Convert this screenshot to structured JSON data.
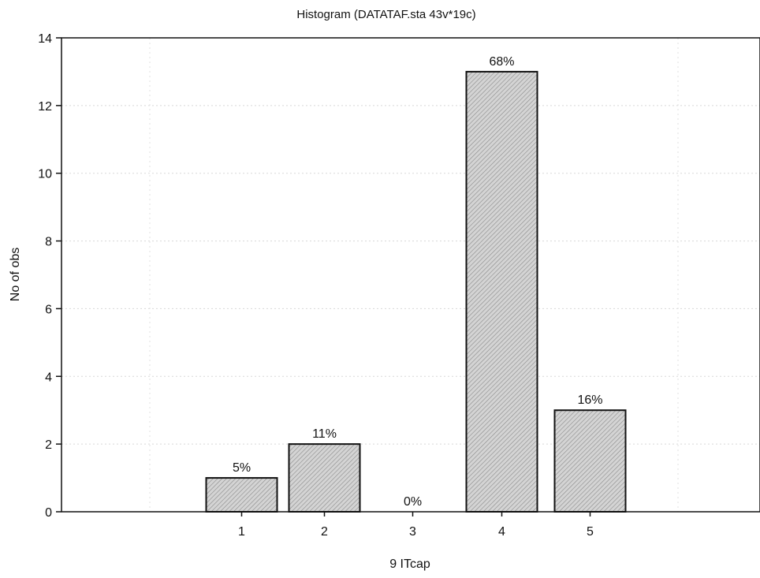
{
  "chart_data": {
    "type": "bar",
    "title": "Histogram (DATATAF.sta 43v*19c)",
    "xlabel": "9 ITcap",
    "ylabel": "No of obs",
    "categories": [
      "1",
      "2",
      "3",
      "4",
      "5"
    ],
    "values": [
      1,
      2,
      0,
      13,
      3
    ],
    "data_labels": [
      "5%",
      "11%",
      "0%",
      "68%",
      "16%"
    ],
    "ylim": [
      0,
      14
    ],
    "yticks": [
      0,
      2,
      4,
      6,
      8,
      10,
      12,
      14
    ],
    "grid": true,
    "bar_fill": "#c8c8c8",
    "bar_stroke": "#111111"
  }
}
